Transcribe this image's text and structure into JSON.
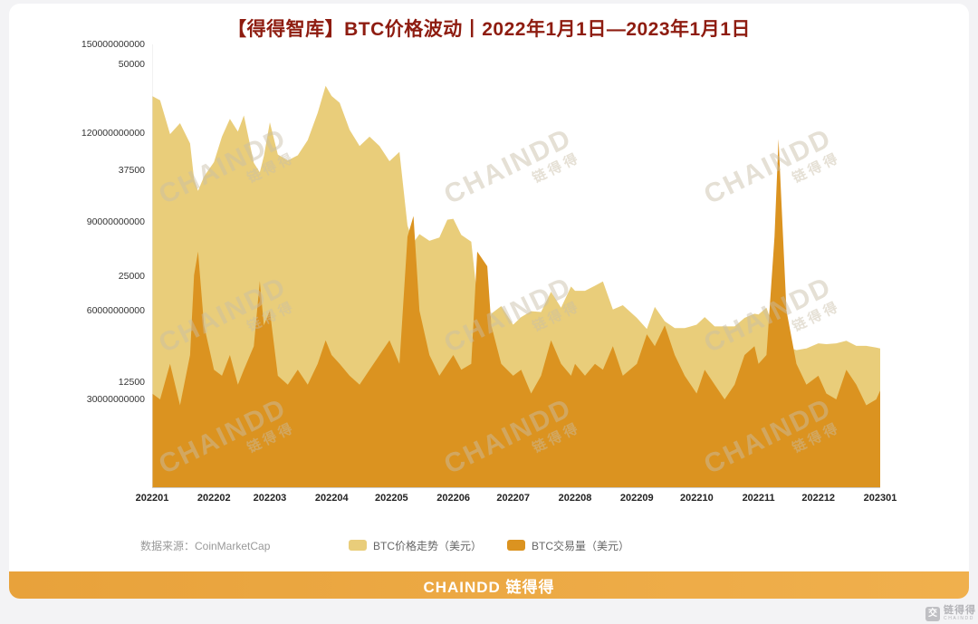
{
  "title": "【得得智库】BTC价格波动丨2022年1月1日—2023年1月1日",
  "source_label": "数据来源：CoinMarketCap",
  "footer": {
    "brand": "CHAINDD 链得得"
  },
  "watermark": {
    "en": "CHAINDD",
    "cn": "链得得"
  },
  "corner_logo": {
    "cn": "链得得",
    "en": "CHAINDD"
  },
  "colors": {
    "price_area": "#e9cd7a",
    "volume_area": "#db9320",
    "title_text": "#8e1c10",
    "footer_gradient": [
      "#e8a23b",
      "#f0b04d"
    ],
    "watermark_text": "#c8bca4"
  },
  "chart_data": {
    "type": "area",
    "title": "【得得智库】BTC价格波动丨2022年1月1日—2023年1月1日",
    "xlabel": "",
    "ylabel_left_volume": "BTC交易量（美元）",
    "ylabel_left_price": "BTC价格走势（美元）",
    "grid": false,
    "legend_position": "bottom-center",
    "x_max": 365,
    "x_ticks": [
      {
        "label": "202201",
        "day": 0
      },
      {
        "label": "202202",
        "day": 31
      },
      {
        "label": "202203",
        "day": 59
      },
      {
        "label": "202204",
        "day": 90
      },
      {
        "label": "202205",
        "day": 120
      },
      {
        "label": "202206",
        "day": 151
      },
      {
        "label": "202207",
        "day": 181
      },
      {
        "label": "202208",
        "day": 212
      },
      {
        "label": "202209",
        "day": 243
      },
      {
        "label": "202210",
        "day": 273
      },
      {
        "label": "202211",
        "day": 304
      },
      {
        "label": "202212",
        "day": 334
      },
      {
        "label": "202301",
        "day": 365
      }
    ],
    "axes": {
      "price": {
        "top_value": 52400,
        "ticks": [
          12500,
          25000,
          37500,
          50000
        ],
        "tick_labels": [
          "12500",
          "25000",
          "37500",
          "50000"
        ],
        "unit": "USD"
      },
      "volume": {
        "top_value": 150,
        "ticks": [
          30,
          60,
          90,
          120,
          150
        ],
        "tick_labels": [
          "30000000000",
          "60000000000",
          "90000000000",
          "120000000000",
          "150000000000"
        ],
        "unit": "billion USD"
      }
    },
    "x_days": [
      0,
      4,
      9,
      14,
      19,
      21,
      23,
      26,
      31,
      35,
      39,
      43,
      46,
      51,
      54,
      56,
      59,
      63,
      68,
      73,
      78,
      83,
      87,
      90,
      94,
      99,
      104,
      109,
      114,
      119,
      124,
      128,
      131,
      134,
      139,
      144,
      148,
      151,
      155,
      160,
      163,
      168,
      170,
      175,
      181,
      185,
      190,
      195,
      200,
      205,
      210,
      212,
      217,
      222,
      226,
      231,
      236,
      243,
      248,
      252,
      257,
      262,
      267,
      273,
      277,
      282,
      287,
      292,
      297,
      302,
      304,
      308,
      312,
      314,
      318,
      323,
      328,
      334,
      338,
      343,
      348,
      353,
      358,
      363,
      365
    ],
    "series": [
      {
        "name": "BTC价格走势（美元）",
        "axis": "price",
        "color": "#e9cd7a",
        "values": [
          46300,
          45800,
          41800,
          43100,
          40700,
          36500,
          35100,
          36800,
          38500,
          41500,
          43600,
          42100,
          44000,
          38400,
          37300,
          39200,
          43200,
          39400,
          38700,
          39300,
          41100,
          44300,
          47500,
          46300,
          45500,
          42300,
          40400,
          41500,
          40400,
          38600,
          39700,
          31000,
          29000,
          30000,
          29200,
          29600,
          31700,
          31800,
          29900,
          29100,
          22500,
          19000,
          20600,
          21500,
          19300,
          20200,
          20900,
          20800,
          23200,
          21300,
          23800,
          23300,
          23300,
          23900,
          24400,
          21100,
          21600,
          20100,
          18800,
          21400,
          19700,
          18900,
          18900,
          19300,
          20200,
          19100,
          19100,
          19100,
          20100,
          20600,
          20500,
          21300,
          18500,
          15900,
          16700,
          16300,
          16500,
          17100,
          17000,
          17100,
          17400,
          16800,
          16800,
          16600,
          16500
        ]
      },
      {
        "name": "BTC交易量（美元）",
        "axis": "volume",
        "color": "#db9320",
        "values": [
          32,
          30,
          42,
          28,
          45,
          72,
          80,
          55,
          40,
          38,
          45,
          35,
          40,
          48,
          70,
          55,
          60,
          38,
          35,
          40,
          35,
          42,
          50,
          45,
          42,
          38,
          35,
          40,
          45,
          50,
          42,
          85,
          92,
          60,
          45,
          38,
          42,
          45,
          40,
          42,
          80,
          75,
          55,
          42,
          38,
          40,
          32,
          38,
          50,
          42,
          38,
          42,
          38,
          42,
          40,
          48,
          38,
          42,
          52,
          48,
          55,
          45,
          38,
          32,
          40,
          35,
          30,
          35,
          45,
          48,
          42,
          45,
          85,
          118,
          60,
          42,
          35,
          38,
          32,
          30,
          40,
          35,
          28,
          30,
          33
        ]
      }
    ]
  }
}
